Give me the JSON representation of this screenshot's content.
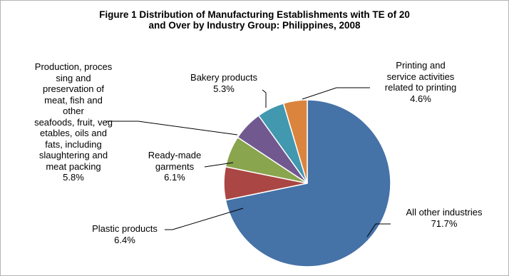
{
  "chart_data": {
    "type": "pie",
    "title_lines": [
      "Figure 1  Distribution of Manufacturing Establishments with TE of 20",
      "and Over by Industry Group: Philippines, 2008"
    ],
    "start_angle_deg": 0,
    "direction": "clockwise",
    "slices": [
      {
        "label_lines": [
          "All other industries"
        ],
        "pct_text": "71.7%",
        "value": 71.7,
        "color": "#4572a7"
      },
      {
        "label_lines": [
          "Plastic products"
        ],
        "pct_text": "6.4%",
        "value": 6.4,
        "color": "#aa4643"
      },
      {
        "label_lines": [
          "Ready-made",
          "garments"
        ],
        "pct_text": "6.1%",
        "value": 6.1,
        "color": "#89a54e"
      },
      {
        "label_lines": [
          "Production, proces",
          "sing and",
          "preservation of",
          "meat, fish and",
          "other",
          "seafoods, fruit, veg",
          "etables, oils and",
          "fats, including",
          "slaughtering and",
          "meat packing"
        ],
        "pct_text": "5.8%",
        "value": 5.8,
        "color": "#71588f"
      },
      {
        "label_lines": [
          "Bakery products"
        ],
        "pct_text": "5.3%",
        "value": 5.3,
        "color": "#4198af"
      },
      {
        "label_lines": [
          "Printing and",
          "service activities",
          "related to printing"
        ],
        "pct_text": "4.6%",
        "value": 4.6,
        "color": "#db843d"
      }
    ]
  }
}
